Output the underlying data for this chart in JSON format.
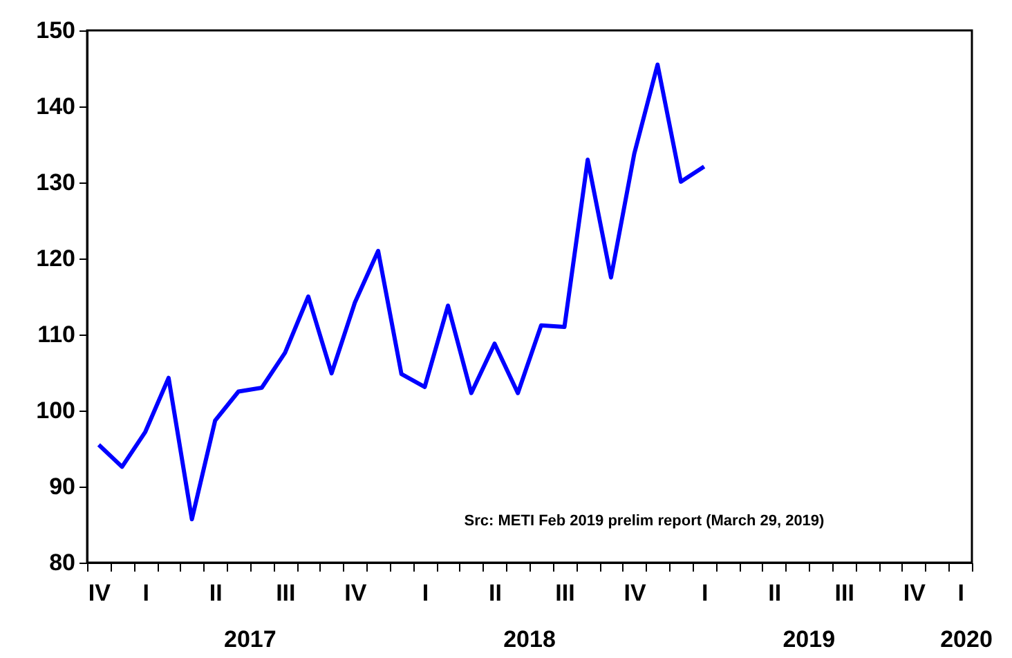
{
  "chart_data": {
    "type": "line",
    "categories": [
      "IV",
      null,
      "I",
      null,
      null,
      "II",
      null,
      null,
      "III",
      null,
      null,
      "IV",
      null,
      null,
      "I",
      null,
      null,
      "II",
      null,
      null,
      "III",
      null,
      null,
      "IV",
      null,
      null,
      "I",
      null,
      null,
      "II",
      null,
      null,
      "III",
      null,
      null,
      "IV",
      null,
      "I"
    ],
    "series": [
      {
        "color": "#0000ff",
        "values": [
          95.5,
          92.6,
          97.2,
          104.3,
          85.7,
          98.7,
          102.5,
          103.0,
          107.6,
          115.0,
          104.9,
          114.2,
          121.0,
          104.8,
          103.1,
          113.8,
          102.3,
          108.8,
          102.3,
          111.2,
          111.0,
          133.0,
          117.5,
          133.8,
          145.5,
          130.1,
          132.1,
          null,
          null,
          null,
          null,
          null,
          null,
          null,
          null,
          null,
          null,
          null
        ]
      }
    ],
    "ylim": [
      80,
      150
    ],
    "yticks": [
      80,
      90,
      100,
      110,
      120,
      130,
      140,
      150
    ],
    "annotations": [
      "Src: METI Feb 2019 prelim report (March 29, 2019)",
      "2017",
      "2018",
      "2019",
      "2020"
    ],
    "grid": false,
    "line_style": "solid"
  }
}
